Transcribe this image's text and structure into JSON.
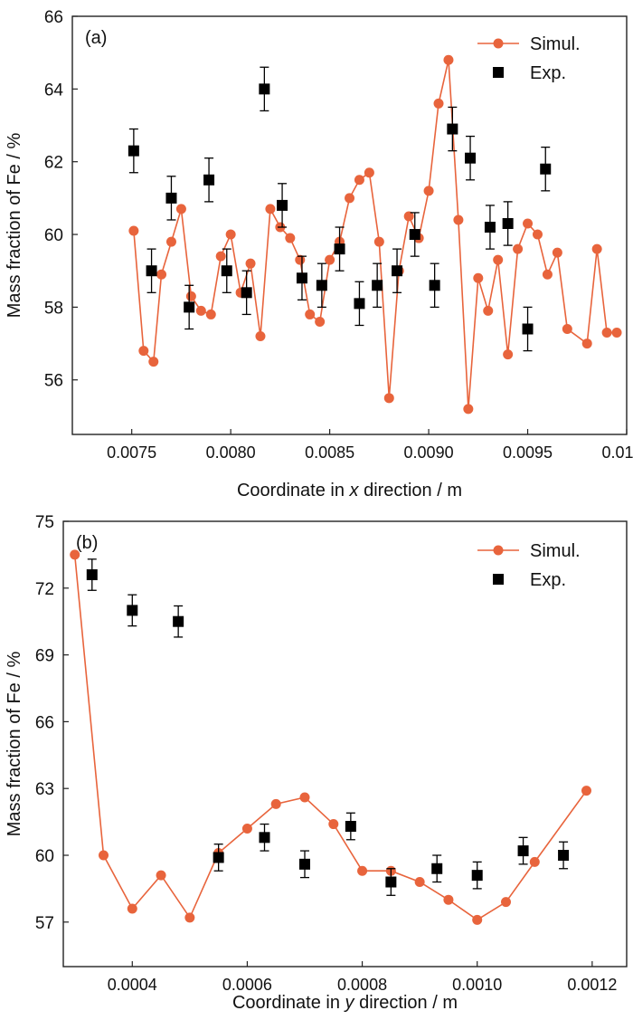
{
  "colors": {
    "simul": "#E8643C",
    "exp": "#000000",
    "axis": "#222222"
  },
  "chart_data": [
    {
      "type": "scatter",
      "panel_label": "(a)",
      "xlabel_parts": [
        "Coordinate in ",
        "x",
        " direction / m"
      ],
      "ylabel": "Mass fraction of Fe / %",
      "xlim": [
        0.0072,
        0.01
      ],
      "ylim": [
        54.5,
        66
      ],
      "xticks": [
        "0.0075",
        "0.0080",
        "0.0085",
        "0.0090",
        "0.0095",
        "0.0100"
      ],
      "xtick_values": [
        0.0075,
        0.008,
        0.0085,
        0.009,
        0.0095,
        0.01
      ],
      "yticks": [
        "56",
        "58",
        "60",
        "62",
        "64",
        "66"
      ],
      "ytick_values": [
        56,
        58,
        60,
        62,
        64,
        66
      ],
      "legend_position": "top-right",
      "series": [
        {
          "name": "Simul.",
          "style": "line-circle",
          "x": [
            0.00751,
            0.00756,
            0.00761,
            0.00765,
            0.0077,
            0.00775,
            0.0078,
            0.00785,
            0.0079,
            0.00795,
            0.008,
            0.00805,
            0.0081,
            0.00815,
            0.0082,
            0.00825,
            0.0083,
            0.00835,
            0.0084,
            0.00845,
            0.0085,
            0.00855,
            0.0086,
            0.00865,
            0.0087,
            0.00875,
            0.0088,
            0.00885,
            0.0089,
            0.00895,
            0.009,
            0.00905,
            0.0091,
            0.00915,
            0.0092,
            0.00925,
            0.0093,
            0.00935,
            0.0094,
            0.00945,
            0.0095,
            0.00955,
            0.0096,
            0.00965,
            0.0097,
            0.0098,
            0.00985,
            0.0099,
            0.00995
          ],
          "y": [
            60.1,
            56.8,
            56.5,
            58.9,
            59.8,
            60.7,
            58.3,
            57.9,
            57.8,
            59.4,
            60.0,
            58.4,
            59.2,
            57.2,
            60.7,
            60.2,
            59.9,
            59.3,
            57.8,
            57.6,
            59.3,
            59.8,
            61.0,
            61.5,
            61.7,
            59.8,
            55.5,
            59.0,
            60.5,
            59.9,
            61.2,
            63.6,
            64.8,
            60.4,
            55.2,
            58.8,
            57.9,
            59.3,
            56.7,
            59.6,
            60.3,
            60.0,
            58.9,
            59.5,
            57.4,
            57.0,
            59.6,
            57.3,
            57.3
          ]
        },
        {
          "name": "Exp.",
          "style": "square-errorbar",
          "x": [
            0.00751,
            0.0076,
            0.0077,
            0.00779,
            0.00789,
            0.00798,
            0.00808,
            0.00817,
            0.00826,
            0.00836,
            0.00846,
            0.00855,
            0.00865,
            0.00874,
            0.00884,
            0.00893,
            0.00903,
            0.00912,
            0.00921,
            0.00931,
            0.0094,
            0.0095,
            0.00959
          ],
          "y": [
            62.3,
            59.0,
            61.0,
            58.0,
            61.5,
            59.0,
            58.4,
            64.0,
            60.8,
            58.8,
            58.6,
            59.6,
            58.1,
            58.6,
            59.0,
            60.0,
            58.6,
            62.9,
            62.1,
            60.2,
            60.3,
            57.4,
            61.8
          ],
          "err": [
            0.6,
            0.6,
            0.6,
            0.6,
            0.6,
            0.6,
            0.6,
            0.6,
            0.6,
            0.6,
            0.6,
            0.6,
            0.6,
            0.6,
            0.6,
            0.6,
            0.6,
            0.6,
            0.6,
            0.6,
            0.6,
            0.6,
            0.6
          ]
        }
      ]
    },
    {
      "type": "scatter",
      "panel_label": "(b)",
      "xlabel_parts": [
        "Coordinate in ",
        "y",
        " direction / m"
      ],
      "ylabel": "Mass fraction of Fe / %",
      "xlim": [
        0.00028,
        0.00126
      ],
      "ylim": [
        55.0,
        75.0
      ],
      "xticks": [
        "0.0004",
        "0.0006",
        "0.0008",
        "0.0010",
        "0.0012"
      ],
      "xtick_values": [
        0.0004,
        0.0006,
        0.0008,
        0.001,
        0.0012
      ],
      "yticks": [
        "57",
        "60",
        "63",
        "66",
        "69",
        "72",
        "75"
      ],
      "ytick_values": [
        57,
        60,
        63,
        66,
        69,
        72,
        75
      ],
      "legend_position": "top-right",
      "series": [
        {
          "name": "Simul.",
          "style": "line-circle",
          "x": [
            0.0003,
            0.00035,
            0.0004,
            0.00045,
            0.0005,
            0.00055,
            0.0006,
            0.00065,
            0.0007,
            0.00075,
            0.0008,
            0.00085,
            0.0009,
            0.00095,
            0.001,
            0.00105,
            0.0011,
            0.00119
          ],
          "y": [
            73.5,
            60.0,
            57.6,
            59.1,
            57.2,
            60.1,
            61.2,
            62.3,
            62.6,
            61.4,
            59.3,
            59.3,
            58.8,
            58.0,
            57.1,
            57.9,
            59.7,
            62.9
          ]
        },
        {
          "name": "Exp.",
          "style": "square-errorbar",
          "x": [
            0.00033,
            0.0004,
            0.00048,
            0.00055,
            0.00063,
            0.0007,
            0.00078,
            0.00085,
            0.00093,
            0.001,
            0.00108,
            0.00115
          ],
          "y": [
            72.6,
            71.0,
            70.5,
            59.9,
            60.8,
            59.6,
            61.3,
            58.8,
            59.4,
            59.1,
            60.2,
            60.0
          ],
          "err": [
            0.7,
            0.7,
            0.7,
            0.6,
            0.6,
            0.6,
            0.6,
            0.6,
            0.6,
            0.6,
            0.6,
            0.6
          ]
        }
      ]
    }
  ]
}
